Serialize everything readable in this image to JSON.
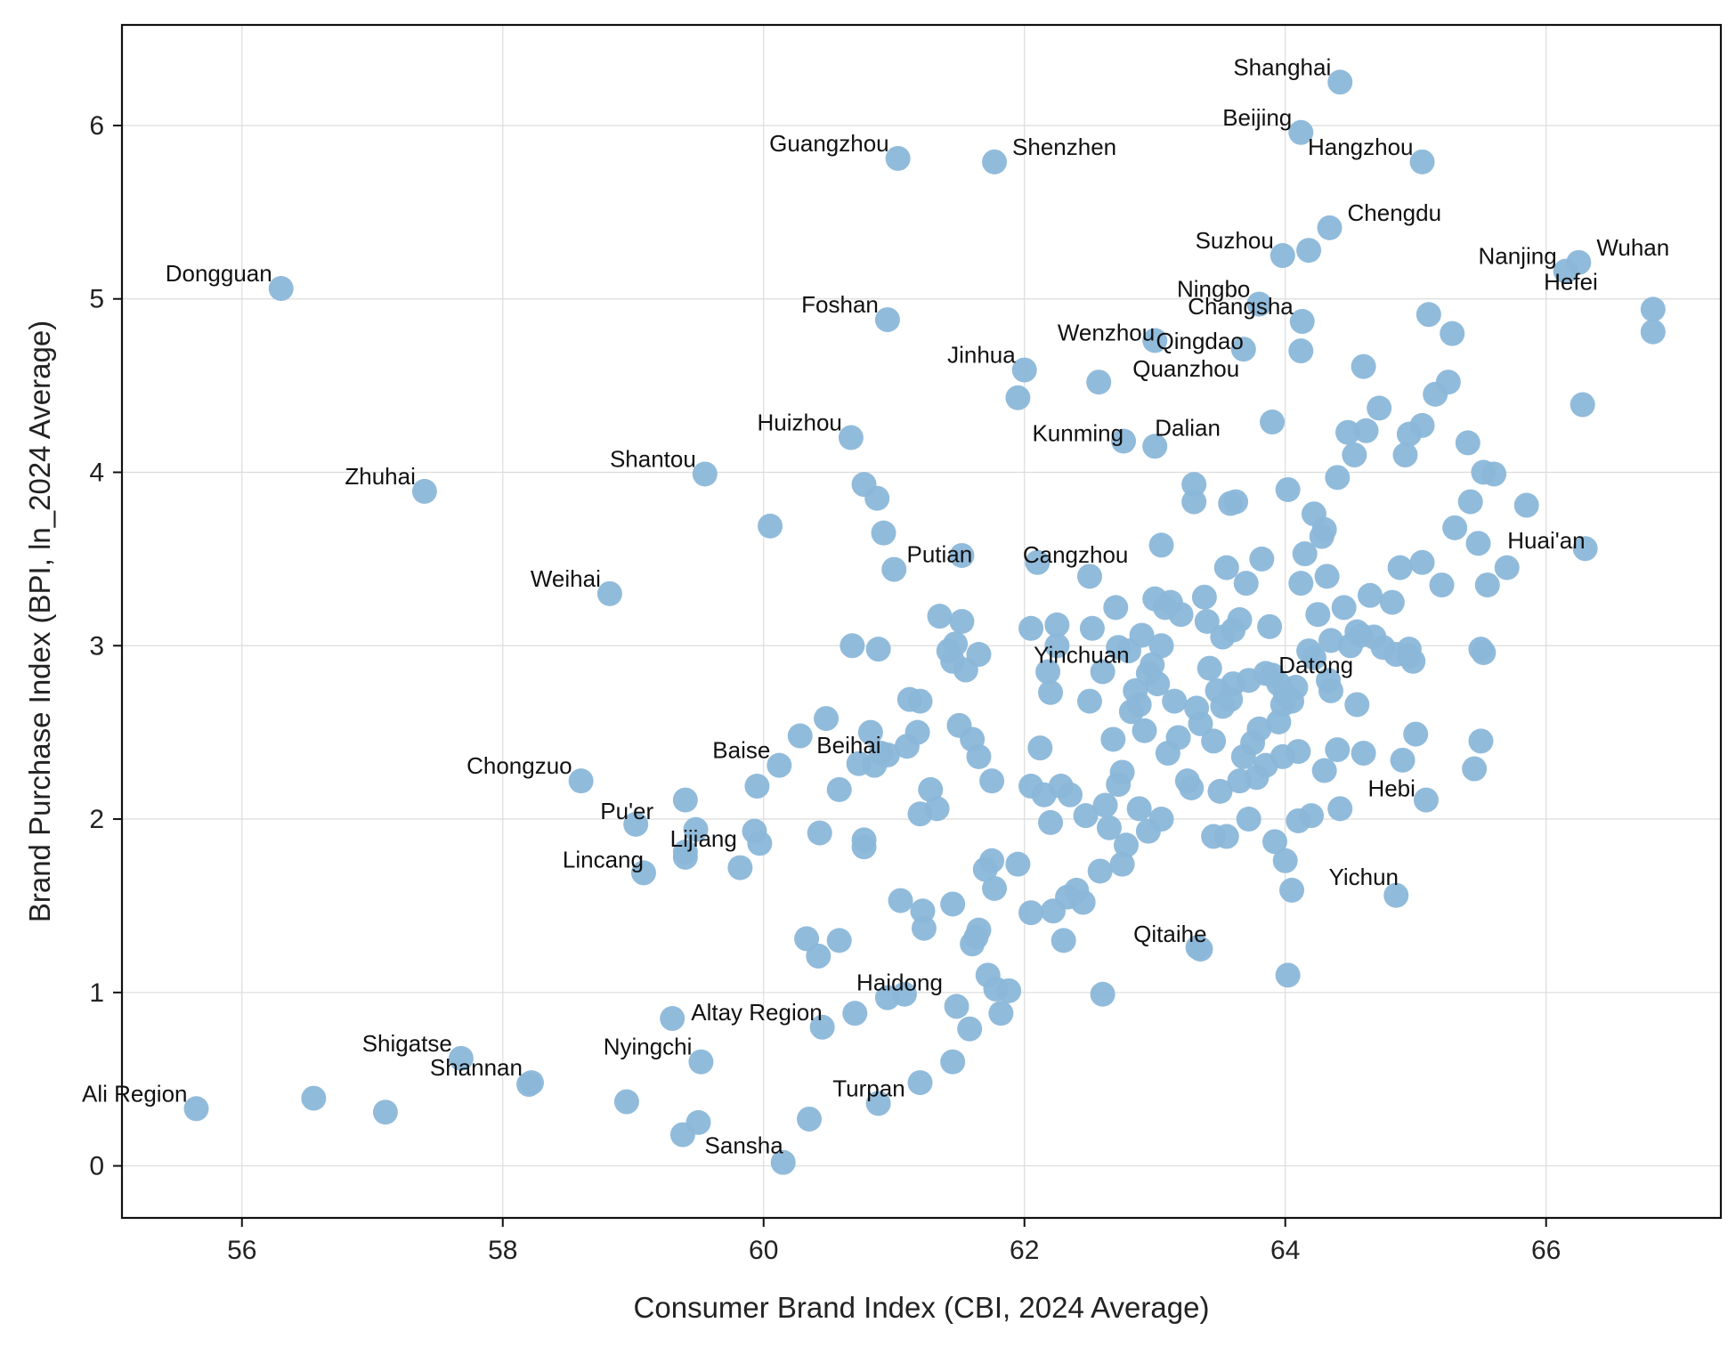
{
  "chart_data": {
    "type": "scatter",
    "xlabel": "Consumer Brand Index (CBI, 2024 Average)",
    "ylabel": "Brand Purchase Index (BPI, ln_2024 Average)",
    "xlim": [
      55.08,
      67.34
    ],
    "ylim": [
      -0.3,
      6.58
    ],
    "xticks": [
      56,
      58,
      60,
      62,
      64,
      66
    ],
    "yticks": [
      0,
      1,
      2,
      3,
      4,
      5,
      6
    ],
    "grid": true,
    "point_color": "#8bb7d9",
    "labeled_points": [
      {
        "label": "Shanghai",
        "x": 64.42,
        "y": 6.25
      },
      {
        "label": "Beijing",
        "x": 64.12,
        "y": 5.96
      },
      {
        "label": "Hangzhou",
        "x": 65.05,
        "y": 5.79
      },
      {
        "label": "Guangzhou",
        "x": 61.03,
        "y": 5.81
      },
      {
        "label": "Shenzhen",
        "x": 61.77,
        "y": 5.79
      },
      {
        "label": "Chengdu",
        "x": 64.34,
        "y": 5.41
      },
      {
        "label": "Suzhou",
        "x": 63.98,
        "y": 5.25
      },
      {
        "label": "Nanjing",
        "x": 66.15,
        "y": 5.16
      },
      {
        "label": "Wuhan",
        "x": 66.25,
        "y": 5.21
      },
      {
        "label": "Dongguan",
        "x": 56.3,
        "y": 5.06
      },
      {
        "label": "Ningbo",
        "x": 63.8,
        "y": 4.97
      },
      {
        "label": "Changsha",
        "x": 64.13,
        "y": 4.87
      },
      {
        "label": "Hefei",
        "x": 66.82,
        "y": 4.94
      },
      {
        "label": "Foshan",
        "x": 60.95,
        "y": 4.88
      },
      {
        "label": "Wenzhou",
        "x": 63.0,
        "y": 4.76
      },
      {
        "label": "Qingdao",
        "x": 63.68,
        "y": 4.71
      },
      {
        "label": "Jinhua",
        "x": 62.0,
        "y": 4.59
      },
      {
        "label": "Quanzhou",
        "x": 62.57,
        "y": 4.52
      },
      {
        "label": "Kunming",
        "x": 62.76,
        "y": 4.18
      },
      {
        "label": "Dalian",
        "x": 63.0,
        "y": 4.15
      },
      {
        "label": "Huizhou",
        "x": 60.67,
        "y": 4.2
      },
      {
        "label": "Shantou",
        "x": 59.55,
        "y": 3.99
      },
      {
        "label": "Zhuhai",
        "x": 57.4,
        "y": 3.89
      },
      {
        "label": "Huai'an",
        "x": 66.3,
        "y": 3.56
      },
      {
        "label": "Putian",
        "x": 61.0,
        "y": 3.44
      },
      {
        "label": "Cangzhou",
        "x": 62.1,
        "y": 3.48
      },
      {
        "label": "Weihai",
        "x": 58.82,
        "y": 3.3
      },
      {
        "label": "Yinchuan",
        "x": 62.6,
        "y": 2.85
      },
      {
        "label": "Datong",
        "x": 64.33,
        "y": 2.8
      },
      {
        "label": "Baise",
        "x": 60.12,
        "y": 2.31
      },
      {
        "label": "Beihai",
        "x": 60.9,
        "y": 2.38
      },
      {
        "label": "Chongzuo",
        "x": 58.6,
        "y": 2.22
      },
      {
        "label": "Hebi",
        "x": 65.08,
        "y": 2.11
      },
      {
        "label": "Pu'er",
        "x": 59.02,
        "y": 1.97
      },
      {
        "label": "Lijiang",
        "x": 59.4,
        "y": 1.81
      },
      {
        "label": "Lincang",
        "x": 59.08,
        "y": 1.69
      },
      {
        "label": "Yichun",
        "x": 64.05,
        "y": 1.59
      },
      {
        "label": "Qitaihe",
        "x": 63.33,
        "y": 1.26
      },
      {
        "label": "Haidong",
        "x": 60.95,
        "y": 0.97
      },
      {
        "label": "Altay Region",
        "x": 60.45,
        "y": 0.8
      },
      {
        "label": "Shigatse",
        "x": 57.68,
        "y": 0.62
      },
      {
        "label": "Nyingchi",
        "x": 59.52,
        "y": 0.6
      },
      {
        "label": "Shannan",
        "x": 58.22,
        "y": 0.48
      },
      {
        "label": "Ali Region",
        "x": 55.65,
        "y": 0.33
      },
      {
        "label": "Turpan",
        "x": 60.88,
        "y": 0.36
      },
      {
        "label": "Sansha",
        "x": 60.15,
        "y": 0.02
      }
    ],
    "other_points": [
      [
        56.55,
        0.39
      ],
      [
        57.1,
        0.31
      ],
      [
        58.2,
        0.47
      ],
      [
        58.95,
        0.37
      ],
      [
        59.3,
        0.85
      ],
      [
        59.38,
        0.18
      ],
      [
        59.5,
        0.25
      ],
      [
        60.35,
        0.27
      ],
      [
        61.2,
        0.48
      ],
      [
        61.45,
        0.6
      ],
      [
        59.4,
        2.11
      ],
      [
        59.48,
        1.94
      ],
      [
        59.4,
        1.78
      ],
      [
        59.82,
        1.72
      ],
      [
        59.97,
        1.86
      ],
      [
        59.93,
        1.93
      ],
      [
        59.95,
        2.19
      ],
      [
        60.05,
        3.69
      ],
      [
        60.28,
        2.48
      ],
      [
        60.48,
        2.58
      ],
      [
        60.43,
        1.92
      ],
      [
        60.58,
        2.17
      ],
      [
        60.73,
        2.32
      ],
      [
        60.77,
        1.88
      ],
      [
        60.77,
        1.84
      ],
      [
        60.85,
        2.31
      ],
      [
        60.95,
        2.37
      ],
      [
        60.33,
        1.31
      ],
      [
        60.42,
        1.21
      ],
      [
        60.58,
        1.3
      ],
      [
        60.7,
        0.88
      ],
      [
        60.82,
        2.5
      ],
      [
        60.68,
        3.0
      ],
      [
        60.88,
        2.98
      ],
      [
        60.77,
        3.93
      ],
      [
        60.87,
        3.85
      ],
      [
        60.92,
        3.65
      ],
      [
        61.05,
        1.53
      ],
      [
        61.08,
        0.99
      ],
      [
        61.1,
        2.42
      ],
      [
        61.12,
        2.69
      ],
      [
        61.2,
        2.68
      ],
      [
        61.18,
        2.5
      ],
      [
        61.22,
        1.47
      ],
      [
        61.23,
        1.37
      ],
      [
        61.2,
        2.03
      ],
      [
        61.28,
        2.17
      ],
      [
        61.33,
        2.06
      ],
      [
        61.35,
        3.17
      ],
      [
        61.42,
        2.97
      ],
      [
        61.47,
        3.01
      ],
      [
        61.45,
        2.91
      ],
      [
        61.52,
        3.14
      ],
      [
        61.55,
        2.86
      ],
      [
        61.6,
        2.46
      ],
      [
        61.5,
        2.54
      ],
      [
        61.65,
        2.36
      ],
      [
        61.75,
        2.22
      ],
      [
        61.65,
        2.95
      ],
      [
        61.45,
        1.51
      ],
      [
        61.48,
        0.92
      ],
      [
        61.58,
        0.79
      ],
      [
        61.63,
        1.32
      ],
      [
        61.6,
        1.28
      ],
      [
        61.65,
        1.36
      ],
      [
        61.7,
        1.71
      ],
      [
        61.72,
        1.1
      ],
      [
        61.75,
        1.76
      ],
      [
        61.77,
        1.6
      ],
      [
        61.78,
        1.02
      ],
      [
        61.82,
        0.88
      ],
      [
        61.88,
        1.01
      ],
      [
        61.95,
        1.74
      ],
      [
        61.52,
        3.52
      ],
      [
        61.95,
        4.43
      ],
      [
        62.05,
        3.1
      ],
      [
        62.05,
        1.46
      ],
      [
        62.05,
        2.19
      ],
      [
        62.12,
        2.41
      ],
      [
        62.15,
        2.14
      ],
      [
        62.18,
        2.85
      ],
      [
        62.2,
        2.73
      ],
      [
        62.2,
        1.98
      ],
      [
        62.22,
        1.47
      ],
      [
        62.25,
        3.12
      ],
      [
        62.25,
        3.0
      ],
      [
        62.28,
        2.19
      ],
      [
        62.3,
        1.3
      ],
      [
        62.33,
        1.55
      ],
      [
        62.35,
        2.14
      ],
      [
        62.4,
        1.59
      ],
      [
        62.45,
        1.52
      ],
      [
        62.47,
        2.02
      ],
      [
        62.5,
        2.68
      ],
      [
        62.5,
        3.4
      ],
      [
        62.52,
        3.1
      ],
      [
        62.58,
        1.7
      ],
      [
        62.6,
        0.99
      ],
      [
        62.62,
        2.08
      ],
      [
        62.65,
        1.95
      ],
      [
        62.68,
        2.46
      ],
      [
        62.7,
        3.22
      ],
      [
        62.72,
        2.99
      ],
      [
        62.72,
        2.2
      ],
      [
        62.75,
        2.27
      ],
      [
        62.75,
        1.74
      ],
      [
        62.78,
        1.85
      ],
      [
        62.8,
        2.97
      ],
      [
        62.82,
        2.62
      ],
      [
        62.85,
        2.74
      ],
      [
        62.88,
        2.06
      ],
      [
        62.88,
        2.66
      ],
      [
        62.9,
        3.06
      ],
      [
        62.92,
        2.51
      ],
      [
        62.95,
        1.93
      ],
      [
        62.95,
        2.84
      ],
      [
        62.98,
        2.89
      ],
      [
        63.0,
        3.27
      ],
      [
        63.02,
        2.78
      ],
      [
        63.05,
        3.0
      ],
      [
        63.05,
        2.0
      ],
      [
        63.05,
        3.58
      ],
      [
        63.08,
        3.22
      ],
      [
        63.1,
        2.38
      ],
      [
        63.12,
        3.25
      ],
      [
        63.15,
        2.68
      ],
      [
        63.18,
        2.47
      ],
      [
        63.2,
        3.18
      ],
      [
        63.25,
        2.22
      ],
      [
        63.28,
        2.18
      ],
      [
        63.3,
        3.93
      ],
      [
        63.3,
        3.83
      ],
      [
        63.32,
        2.64
      ],
      [
        63.35,
        2.55
      ],
      [
        63.35,
        1.25
      ],
      [
        63.38,
        3.28
      ],
      [
        63.4,
        3.14
      ],
      [
        63.42,
        2.87
      ],
      [
        63.45,
        1.9
      ],
      [
        63.45,
        2.45
      ],
      [
        63.48,
        2.74
      ],
      [
        63.5,
        2.16
      ],
      [
        63.52,
        3.05
      ],
      [
        63.52,
        2.65
      ],
      [
        63.55,
        1.9
      ],
      [
        63.55,
        3.45
      ],
      [
        63.58,
        2.69
      ],
      [
        63.58,
        3.82
      ],
      [
        63.6,
        2.78
      ],
      [
        63.6,
        3.09
      ],
      [
        63.62,
        3.83
      ],
      [
        63.65,
        3.15
      ],
      [
        63.65,
        2.22
      ],
      [
        63.68,
        2.36
      ],
      [
        63.7,
        3.36
      ],
      [
        63.72,
        2.0
      ],
      [
        63.72,
        2.8
      ],
      [
        63.75,
        2.44
      ],
      [
        63.78,
        2.24
      ],
      [
        63.8,
        2.52
      ],
      [
        63.82,
        3.5
      ],
      [
        63.85,
        2.31
      ],
      [
        63.85,
        2.84
      ],
      [
        63.88,
        3.11
      ],
      [
        63.9,
        4.29
      ],
      [
        63.9,
        2.83
      ],
      [
        63.92,
        1.87
      ],
      [
        63.95,
        2.78
      ],
      [
        63.95,
        2.56
      ],
      [
        63.98,
        2.36
      ],
      [
        64.0,
        1.76
      ],
      [
        64.0,
        2.72
      ],
      [
        64.02,
        3.9
      ],
      [
        64.02,
        1.1
      ],
      [
        64.05,
        2.68
      ],
      [
        64.08,
        2.76
      ],
      [
        64.1,
        1.99
      ],
      [
        64.1,
        2.39
      ],
      [
        64.12,
        3.36
      ],
      [
        64.15,
        3.53
      ],
      [
        64.18,
        2.97
      ],
      [
        64.2,
        2.02
      ],
      [
        64.22,
        3.76
      ],
      [
        64.22,
        2.93
      ],
      [
        64.25,
        3.18
      ],
      [
        64.28,
        3.63
      ],
      [
        64.3,
        3.67
      ],
      [
        64.3,
        2.28
      ],
      [
        64.32,
        3.4
      ],
      [
        64.35,
        3.03
      ],
      [
        64.35,
        2.74
      ],
      [
        64.4,
        3.97
      ],
      [
        64.4,
        2.4
      ],
      [
        64.42,
        2.06
      ],
      [
        64.45,
        3.22
      ],
      [
        64.48,
        4.23
      ],
      [
        64.5,
        3.0
      ],
      [
        64.53,
        4.1
      ],
      [
        64.55,
        2.66
      ],
      [
        64.58,
        3.06
      ],
      [
        64.6,
        2.38
      ],
      [
        64.62,
        4.24
      ],
      [
        64.65,
        3.29
      ],
      [
        64.68,
        3.05
      ],
      [
        64.72,
        4.37
      ],
      [
        64.75,
        2.99
      ],
      [
        64.82,
        3.25
      ],
      [
        64.85,
        2.95
      ],
      [
        64.88,
        3.45
      ],
      [
        64.9,
        2.34
      ],
      [
        64.92,
        4.1
      ],
      [
        64.95,
        4.22
      ],
      [
        64.95,
        2.94
      ],
      [
        64.98,
        2.91
      ],
      [
        65.0,
        2.49
      ],
      [
        65.05,
        4.27
      ],
      [
        65.05,
        3.48
      ],
      [
        65.1,
        4.91
      ],
      [
        65.15,
        4.45
      ],
      [
        65.2,
        3.35
      ],
      [
        65.25,
        4.52
      ],
      [
        65.28,
        4.8
      ],
      [
        65.3,
        3.68
      ],
      [
        65.4,
        4.17
      ],
      [
        65.42,
        3.83
      ],
      [
        65.45,
        2.29
      ],
      [
        65.48,
        3.59
      ],
      [
        65.5,
        2.45
      ],
      [
        65.5,
        2.98
      ],
      [
        65.52,
        2.96
      ],
      [
        65.52,
        4.0
      ],
      [
        65.55,
        3.35
      ],
      [
        65.6,
        3.99
      ],
      [
        65.7,
        3.45
      ],
      [
        65.85,
        3.81
      ],
      [
        64.85,
        1.56
      ],
      [
        64.6,
        4.61
      ],
      [
        66.28,
        4.39
      ],
      [
        66.82,
        4.81
      ],
      [
        64.12,
        4.7
      ],
      [
        64.95,
        2.98
      ],
      [
        64.18,
        5.28
      ],
      [
        64.55,
        3.08
      ],
      [
        63.98,
        2.66
      ]
    ]
  }
}
